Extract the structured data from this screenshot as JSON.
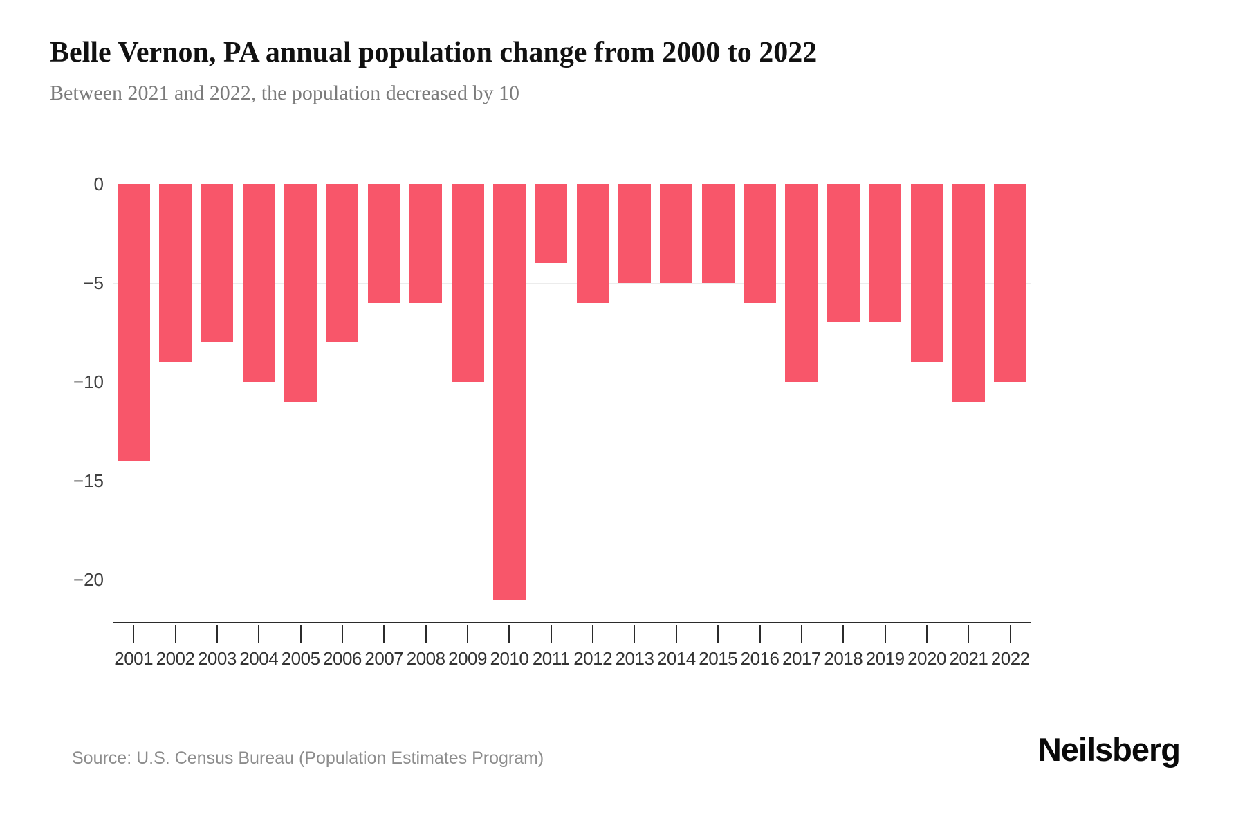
{
  "header": {
    "title": "Belle Vernon, PA annual population change from 2000 to 2022",
    "subtitle": "Between 2021 and 2022, the population decreased by 10"
  },
  "footer": {
    "source": "Source: U.S. Census Bureau (Population Estimates Program)",
    "logo": "Neilsberg"
  },
  "colors": {
    "bar": "#F8566A",
    "axis_line": "#2b2b2b",
    "gridline": "#ececec",
    "y_label": "#3f3f3f",
    "x_label": "#333333",
    "subtitle": "#7b7b7b",
    "source": "#8c8c8c"
  },
  "chart_data": {
    "type": "bar",
    "title": "Belle Vernon, PA annual population change from 2000 to 2022",
    "subtitle": "Between 2021 and 2022, the population decreased by 10",
    "xlabel": "",
    "ylabel": "",
    "categories": [
      "2001",
      "2002",
      "2003",
      "2004",
      "2005",
      "2006",
      "2007",
      "2008",
      "2009",
      "2010",
      "2011",
      "2012",
      "2013",
      "2014",
      "2015",
      "2016",
      "2017",
      "2018",
      "2019",
      "2020",
      "2021",
      "2022"
    ],
    "values": [
      -14,
      -9,
      -8,
      -10,
      -11,
      -8,
      -6,
      -6,
      -10,
      -21,
      -4,
      -6,
      -5,
      -5,
      -5,
      -6,
      -10,
      -7,
      -7,
      -9,
      -11,
      -10
    ],
    "series_name": "Annual population change",
    "ylim": [
      -22.2,
      0
    ],
    "yticks": [
      0,
      -5,
      -10,
      -15,
      -20
    ],
    "grid": true,
    "legend": "none",
    "bar_color": "#F8566A"
  }
}
